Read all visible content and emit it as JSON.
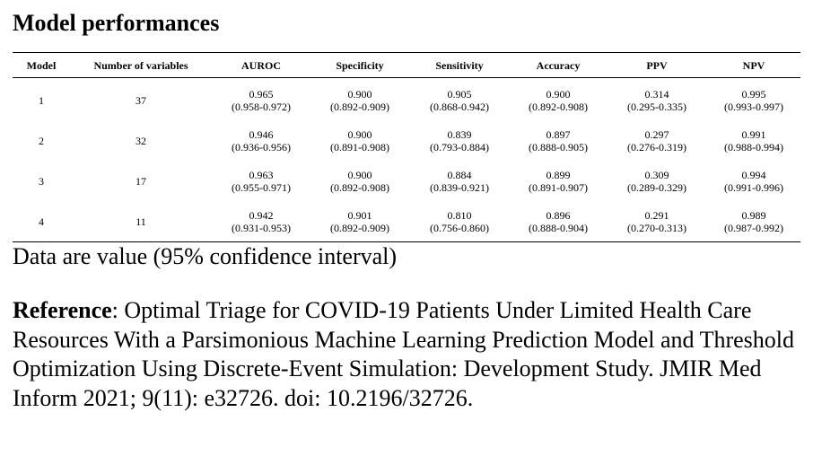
{
  "title": "Model performances",
  "table": {
    "columns": [
      "Model",
      "Number of variables",
      "AUROC",
      "Specificity",
      "Sensitivity",
      "Accuracy",
      "PPV",
      "NPV"
    ],
    "rows": [
      {
        "model": "1",
        "variables": "37",
        "metrics": [
          {
            "value": "0.965",
            "ci": "(0.958-0.972)"
          },
          {
            "value": "0.900",
            "ci": "(0.892-0.909)"
          },
          {
            "value": "0.905",
            "ci": "(0.868-0.942)"
          },
          {
            "value": "0.900",
            "ci": "(0.892-0.908)"
          },
          {
            "value": "0.314",
            "ci": "(0.295-0.335)"
          },
          {
            "value": "0.995",
            "ci": "(0.993-0.997)"
          }
        ]
      },
      {
        "model": "2",
        "variables": "32",
        "metrics": [
          {
            "value": "0.946",
            "ci": "(0.936-0.956)"
          },
          {
            "value": "0.900",
            "ci": "(0.891-0.908)"
          },
          {
            "value": "0.839",
            "ci": "(0.793-0.884)"
          },
          {
            "value": "0.897",
            "ci": "(0.888-0.905)"
          },
          {
            "value": "0.297",
            "ci": "(0.276-0.319)"
          },
          {
            "value": "0.991",
            "ci": "(0.988-0.994)"
          }
        ]
      },
      {
        "model": "3",
        "variables": "17",
        "metrics": [
          {
            "value": "0.963",
            "ci": "(0.955-0.971)"
          },
          {
            "value": "0.900",
            "ci": "(0.892-0.908)"
          },
          {
            "value": "0.884",
            "ci": "(0.839-0.921)"
          },
          {
            "value": "0.899",
            "ci": "(0.891-0.907)"
          },
          {
            "value": "0.309",
            "ci": "(0.289-0.329)"
          },
          {
            "value": "0.994",
            "ci": "(0.991-0.996)"
          }
        ]
      },
      {
        "model": "4",
        "variables": "11",
        "metrics": [
          {
            "value": "0.942",
            "ci": "(0.931-0.953)"
          },
          {
            "value": "0.901",
            "ci": "(0.892-0.909)"
          },
          {
            "value": "0.810",
            "ci": "(0.756-0.860)"
          },
          {
            "value": "0.896",
            "ci": "(0.888-0.904)"
          },
          {
            "value": "0.291",
            "ci": "(0.270-0.313)"
          },
          {
            "value": "0.989",
            "ci": "(0.987-0.992)"
          }
        ]
      }
    ]
  },
  "note": "Data are value (95% confidence interval)",
  "reference": {
    "label": "Reference",
    "text": ": Optimal Triage for COVID-19 Patients Under Limited Health Care Resources With a Parsimonious Machine Learning Prediction Model and Threshold Optimization Using Discrete-Event Simulation: Development Study. JMIR Med Inform 2021; 9(11): e32726. doi: 10.2196/32726."
  }
}
